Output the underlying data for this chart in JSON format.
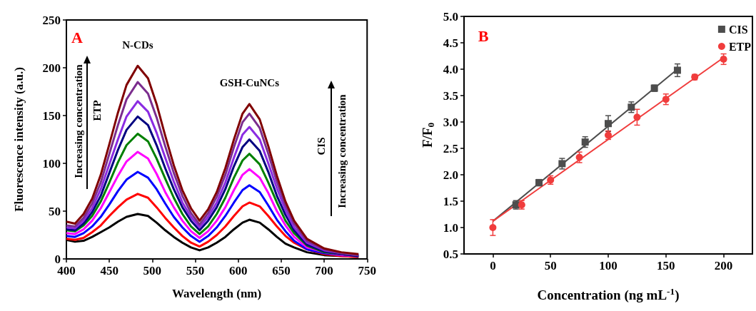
{
  "chart_data": [
    {
      "type": "line",
      "xlabel": "Wavelength (nm)",
      "ylabel": "Fluorescence intensity (a.u.)",
      "annotations": [
        "A",
        {
          "text": "N-CDs",
          "x": 483,
          "y": 202
        },
        {
          "text": "GSH-CuNCs",
          "x": 613,
          "y": 162
        },
        "Increasing concentration",
        "ETP",
        "CIS",
        "Increasing concentration"
      ],
      "x": [
        400,
        410,
        420,
        430,
        440,
        450,
        460,
        470,
        483,
        495,
        505,
        515,
        525,
        535,
        545,
        555,
        565,
        575,
        585,
        595,
        605,
        613,
        625,
        635,
        645,
        655,
        665,
        680,
        700,
        720,
        740
      ],
      "series": [
        {
          "color": "#000000",
          "values": [
            20,
            18,
            19,
            23,
            28,
            33,
            39,
            44,
            47,
            45,
            38,
            30,
            23,
            17,
            12,
            9,
            12,
            17,
            23,
            31,
            38,
            41,
            38,
            31,
            23,
            16,
            12,
            7,
            4,
            3,
            2
          ]
        },
        {
          "color": "#ff0000",
          "values": [
            21,
            20,
            22,
            28,
            35,
            45,
            54,
            62,
            68,
            64,
            54,
            43,
            33,
            24,
            17,
            13,
            18,
            25,
            34,
            45,
            55,
            59,
            55,
            45,
            34,
            24,
            17,
            10,
            5,
            3,
            2
          ]
        },
        {
          "color": "#0000ff",
          "values": [
            24,
            23,
            27,
            34,
            44,
            57,
            71,
            83,
            91,
            85,
            73,
            58,
            44,
            33,
            24,
            18,
            24,
            33,
            45,
            59,
            72,
            77,
            70,
            56,
            41,
            29,
            19,
            10,
            6,
            4,
            3
          ]
        },
        {
          "color": "#ff00ff",
          "values": [
            27,
            26,
            31,
            40,
            53,
            70,
            87,
            102,
            112,
            105,
            89,
            70,
            54,
            40,
            29,
            22,
            29,
            40,
            54,
            72,
            88,
            94,
            85,
            69,
            50,
            35,
            23,
            12,
            7,
            4,
            3
          ]
        },
        {
          "color": "#008000",
          "values": [
            30,
            29,
            35,
            45,
            60,
            80,
            101,
            119,
            131,
            123,
            105,
            84,
            64,
            47,
            34,
            26,
            34,
            47,
            64,
            85,
            103,
            110,
            99,
            80,
            59,
            40,
            27,
            14,
            7,
            5,
            3
          ]
        },
        {
          "color": "#000080",
          "values": [
            31,
            30,
            37,
            49,
            66,
            90,
            114,
            135,
            149,
            140,
            119,
            95,
            73,
            54,
            40,
            30,
            40,
            54,
            73,
            97,
            117,
            125,
            113,
            91,
            66,
            46,
            30,
            15,
            8,
            5,
            3
          ]
        },
        {
          "color": "#8a2be2",
          "values": [
            33,
            32,
            40,
            53,
            73,
            99,
            125,
            149,
            165,
            154,
            132,
            106,
            81,
            59,
            44,
            33,
            44,
            59,
            80,
            106,
            130,
            138,
            125,
            100,
            74,
            51,
            33,
            17,
            9,
            6,
            4
          ]
        },
        {
          "color": "#7b2d8e",
          "values": [
            35,
            34,
            43,
            58,
            80,
            110,
            140,
            167,
            185,
            173,
            148,
            118,
            90,
            66,
            48,
            36,
            48,
            65,
            88,
            117,
            143,
            152,
            137,
            110,
            81,
            56,
            37,
            19,
            10,
            6,
            4
          ]
        },
        {
          "color": "#800000",
          "values": [
            39,
            37,
            47,
            63,
            88,
            120,
            153,
            182,
            202,
            189,
            162,
            129,
            98,
            72,
            53,
            40,
            52,
            70,
            95,
            125,
            152,
            162,
            146,
            118,
            87,
            60,
            40,
            21,
            11,
            7,
            5
          ]
        }
      ],
      "xlim": [
        400,
        750
      ],
      "xticks": [
        400,
        450,
        500,
        550,
        600,
        650,
        700,
        750
      ],
      "ylim": [
        0,
        250
      ],
      "yticks": [
        0,
        50,
        100,
        150,
        200,
        250
      ],
      "marker": "none"
    },
    {
      "type": "scatter",
      "xlabel": "Concentration (ng mL$^{-1}$)",
      "ylabel": "F/F$_{0}$",
      "annotations": [
        "B"
      ],
      "series": [
        {
          "name": "CIS",
          "color": "#4d4d4d",
          "marker": "square",
          "x": [
            20,
            40,
            60,
            80,
            100,
            120,
            140,
            160
          ],
          "values": [
            1.43,
            1.85,
            2.21,
            2.62,
            2.97,
            3.28,
            3.64,
            3.98
          ],
          "errors": [
            0.08,
            0.06,
            0.1,
            0.1,
            0.15,
            0.1,
            0.06,
            0.12
          ]
        },
        {
          "name": "ETP",
          "color": "#f03c3c",
          "marker": "circle",
          "x": [
            0,
            25,
            50,
            75,
            100,
            125,
            150,
            175,
            200
          ],
          "values": [
            1.0,
            1.43,
            1.9,
            2.33,
            2.75,
            3.09,
            3.43,
            3.85,
            4.19
          ],
          "errors": [
            0.15,
            0.08,
            0.08,
            0.1,
            0.08,
            0.15,
            0.1,
            0.05,
            0.1
          ]
        },
        {
          "type": "line",
          "color": "#4d4d4d",
          "marker": "none",
          "x": [
            0,
            160
          ],
          "values": [
            1.12,
            4.0
          ]
        },
        {
          "type": "line",
          "color": "#f03c3c",
          "marker": "none",
          "x": [
            0,
            200
          ],
          "values": [
            1.12,
            4.22
          ]
        }
      ],
      "xlim": [
        -25,
        225
      ],
      "xticks": [
        0,
        50,
        100,
        150,
        200
      ],
      "ylim": [
        0.5,
        5.0
      ],
      "yticks": [
        0.5,
        {
          "value": 1,
          "label": "1.0"
        },
        1.5,
        {
          "value": 2,
          "label": "2.0"
        },
        2.5,
        {
          "value": 3,
          "label": "3.0"
        },
        3.5,
        {
          "value": 4,
          "label": "4.0"
        },
        4.5,
        {
          "value": 5,
          "label": "5.0"
        }
      ],
      "legend": "top right"
    }
  ]
}
